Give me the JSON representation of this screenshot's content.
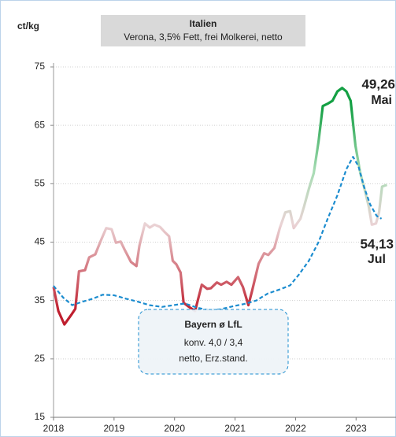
{
  "chart_data": {
    "type": "line",
    "y_axis_label": "ct/kg",
    "title": "Italien",
    "subtitle": "Verona, 3,5% Fett, frei Molkerei, netto",
    "xlim": [
      2018,
      2023.66
    ],
    "xticks": [
      2018,
      2019,
      2020,
      2021,
      2022,
      2023
    ],
    "ylim": [
      15,
      75
    ],
    "yticks": [
      15,
      25,
      35,
      45,
      55,
      65,
      75
    ],
    "grid": true,
    "series": [
      {
        "name": "Italien",
        "color": "#c0272d",
        "color_scale": [
          {
            "value": 33,
            "color": "#bf1e2e"
          },
          {
            "value": 48,
            "color": "#ead3d5"
          },
          {
            "value": 57,
            "color": "#a9dcb5"
          },
          {
            "value": 68,
            "color": "#14a044"
          }
        ],
        "x": [
          2018.0,
          2018.08,
          2018.18,
          2018.29,
          2018.36,
          2018.42,
          2018.52,
          2018.59,
          2018.69,
          2018.78,
          2018.87,
          2018.96,
          2019.03,
          2019.11,
          2019.18,
          2019.28,
          2019.37,
          2019.42,
          2019.51,
          2019.59,
          2019.67,
          2019.76,
          2019.84,
          2019.91,
          2019.97,
          2020.03,
          2020.1,
          2020.15,
          2020.24,
          2020.34,
          2020.45,
          2020.54,
          2020.6,
          2020.7,
          2020.77,
          2020.86,
          2020.94,
          2021.05,
          2021.13,
          2021.22,
          2021.28,
          2021.39,
          2021.48,
          2021.55,
          2021.65,
          2021.74,
          2021.83,
          2021.91,
          2021.97,
          2022.08,
          2022.14,
          2022.22,
          2022.3,
          2022.38,
          2022.45,
          2022.53,
          2022.61,
          2022.69,
          2022.77,
          2022.84,
          2022.91,
          2022.99,
          2023.07,
          2023.14,
          2023.21,
          2023.26,
          2023.33,
          2023.38,
          2023.43,
          2023.51
        ],
        "values": [
          37.3,
          33.2,
          30.9,
          32.5,
          33.6,
          40,
          40.2,
          42.4,
          42.9,
          45.2,
          47.4,
          47.2,
          44.9,
          45.1,
          43.6,
          41.6,
          40.9,
          44.4,
          48.2,
          47.5,
          48.0,
          47.6,
          46.7,
          46.0,
          41.8,
          41.2,
          39.8,
          34.6,
          33.9,
          33.2,
          37.7,
          37.0,
          37.1,
          38.1,
          37.7,
          38.2,
          37.7,
          39.0,
          37.3,
          34.2,
          36.6,
          41.3,
          43.1,
          42.8,
          44.0,
          47.4,
          50.1,
          50.3,
          47.4,
          49.0,
          51.1,
          54.1,
          56.8,
          62.2,
          68.3,
          68.7,
          69.2,
          70.8,
          71.4,
          70.8,
          69.2,
          61.5,
          56.8,
          54.1,
          51.1,
          48.0,
          48.2,
          50.1,
          54.5,
          54.8
        ]
      },
      {
        "name": "Bayern ø LfL",
        "color": "#1b8ccf",
        "dashed": true,
        "x": [
          2018.0,
          2018.16,
          2018.31,
          2018.48,
          2018.65,
          2018.81,
          2019.0,
          2019.2,
          2019.39,
          2019.59,
          2019.79,
          2019.98,
          2020.17,
          2020.37,
          2020.57,
          2020.76,
          2020.96,
          2021.15,
          2021.35,
          2021.54,
          2021.74,
          2021.91,
          2022.06,
          2022.22,
          2022.38,
          2022.53,
          2022.69,
          2022.84,
          2022.95,
          2023.04,
          2023.13,
          2023.23,
          2023.34,
          2023.42
        ],
        "values": [
          37.5,
          35.5,
          34.2,
          34.8,
          35.3,
          36,
          35.9,
          35.3,
          34.8,
          34.2,
          33.9,
          34.2,
          34.5,
          33.8,
          33.3,
          33.5,
          34,
          34.4,
          35,
          36.2,
          36.9,
          37.6,
          39.5,
          41.8,
          45,
          49,
          53,
          57.5,
          59.6,
          58,
          54.5,
          51.5,
          49.5,
          49
        ]
      }
    ],
    "legend_box": {
      "title": "Bayern ø LfL",
      "lines": [
        "konv. 4,0 / 3,4",
        "netto, Erz.stand."
      ]
    },
    "annotations": [
      {
        "value": "49,26",
        "month": "Mai",
        "color": "#29b5e8"
      },
      {
        "value": "54,13",
        "month": "Jul",
        "color": "#16a246"
      }
    ]
  }
}
